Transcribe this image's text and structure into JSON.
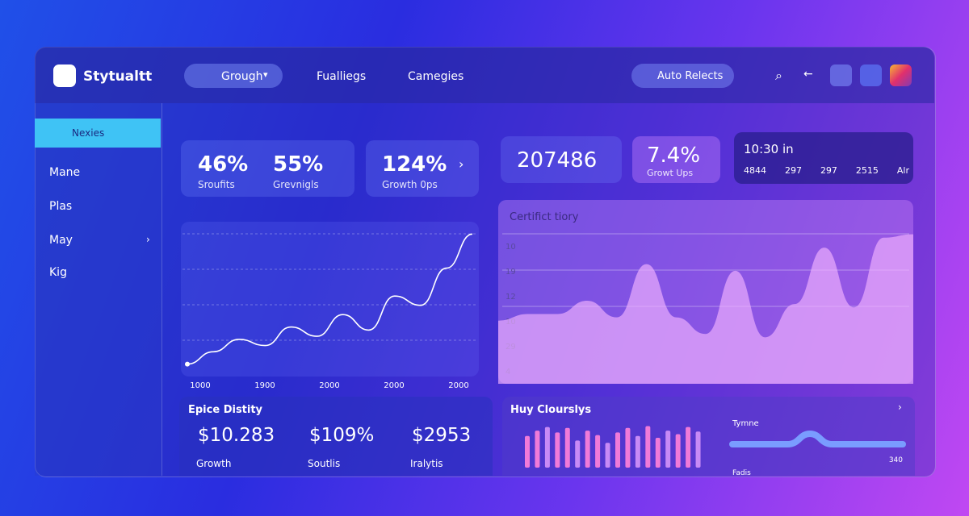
{
  "header": {
    "logo": "Stytualtt",
    "dropdown": "Grough",
    "nav": [
      "Fualliegs",
      "Camegies"
    ],
    "button": "Auto Relects"
  },
  "sidebar": {
    "items": [
      "Nexies",
      "Mane",
      "Plas",
      "May",
      "Kig"
    ]
  },
  "stats": [
    {
      "value": "46%",
      "label": "Sroufits"
    },
    {
      "value": "55%",
      "label": "Grevnigls"
    },
    {
      "value": "124%",
      "label": "Growth 0ps"
    },
    {
      "value": "207486"
    },
    {
      "value": "7.4%",
      "label": "Growt Ups"
    }
  ],
  "time_card": {
    "title": "10:30 in",
    "values": [
      "4844",
      "297",
      "297",
      "2515",
      "Alr"
    ]
  },
  "line_chart": {
    "type": "line",
    "x_labels": [
      "1000",
      "1900",
      "2000",
      "2000",
      "2000"
    ],
    "values": [
      8,
      16,
      24,
      20,
      32,
      26,
      40,
      30,
      52,
      46,
      70,
      92
    ],
    "ylim": [
      0,
      100
    ],
    "color": "#ffffff"
  },
  "area_chart": {
    "type": "area",
    "title": "Certifict tiory",
    "y_labels": [
      "10",
      "19",
      "12",
      "10",
      "29",
      "4"
    ],
    "values": [
      38,
      42,
      42,
      50,
      40,
      72,
      40,
      30,
      68,
      28,
      48,
      82,
      46,
      88,
      90
    ],
    "ylim": [
      0,
      100
    ],
    "color": "#f3b4ff"
  },
  "summary": {
    "title": "Epice Distity",
    "items": [
      {
        "value": "$10.283",
        "label": "Growth"
      },
      {
        "value": "$109%",
        "label": "Soutlis"
      },
      {
        "value": "$2953",
        "label": "Iralytis"
      }
    ]
  },
  "bar_panel": {
    "type": "bar",
    "title": "Huy Clourslys",
    "values": [
      70,
      82,
      90,
      78,
      88,
      60,
      82,
      72,
      55,
      78,
      88,
      70,
      92,
      66,
      82,
      74,
      90,
      80
    ],
    "ylim": [
      0,
      100
    ],
    "color": "#f07ad8",
    "slider_label": "Tymne",
    "slider_value": "340",
    "footer": "Fadis"
  }
}
